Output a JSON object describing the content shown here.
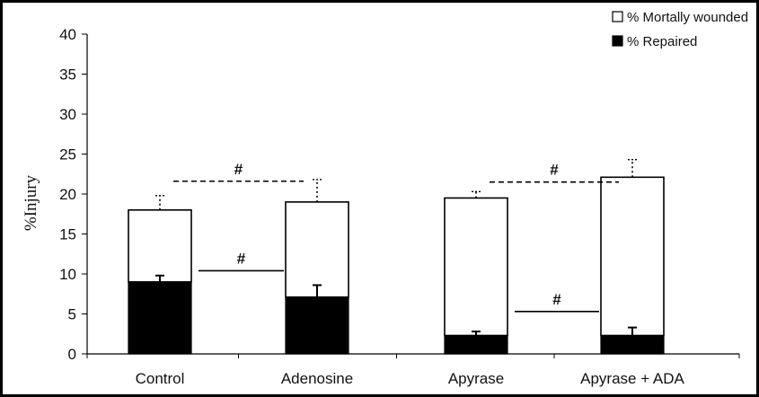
{
  "chart_data": {
    "type": "bar",
    "stacked": true,
    "categories": [
      "Control",
      "Adenosine",
      "Apyrase",
      "Apyrase + ADA"
    ],
    "series": [
      {
        "name": "% Repaired",
        "fill": "#000000",
        "values": [
          9.0,
          7.1,
          2.3,
          2.3
        ],
        "errors": [
          0.8,
          1.5,
          0.5,
          1.0
        ]
      },
      {
        "name": "% Mortally wounded",
        "fill": "#ffffff",
        "values": [
          9.0,
          11.9,
          17.2,
          19.8
        ],
        "errors": [
          1.8,
          2.8,
          0.8,
          2.2
        ]
      }
    ],
    "ylabel": "%Injury",
    "xlabel": "",
    "ylim": [
      0,
      40
    ],
    "yticks": [
      0,
      5,
      10,
      15,
      20,
      25,
      30,
      35,
      40
    ],
    "grid": false,
    "legend": {
      "position": "top-right",
      "entries": [
        "% Mortally wounded",
        "% Repaired"
      ]
    },
    "annotations": [
      {
        "label": "#",
        "style": "solid",
        "from": "Control",
        "to": "Adenosine",
        "y": 10.4
      },
      {
        "label": "#",
        "style": "dashed",
        "from": "Control",
        "to": "Adenosine",
        "y": 21.6
      },
      {
        "label": "#",
        "style": "solid",
        "from": "Apyrase",
        "to": "Apyrase + ADA",
        "y": 5.3
      },
      {
        "label": "#",
        "style": "dashed",
        "from": "Apyrase",
        "to": "Apyrase + ADA",
        "y": 21.5
      }
    ]
  }
}
